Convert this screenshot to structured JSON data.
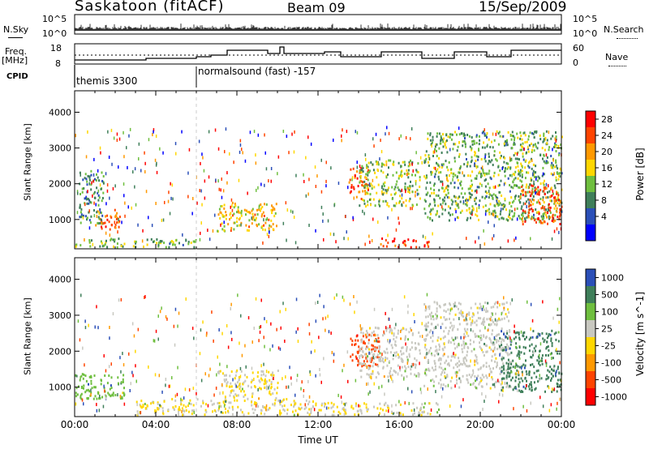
{
  "header": {
    "station": "Saskatoon (fitACF)",
    "beam": "Beam 09",
    "date": "15/Sep/2009"
  },
  "top_panels": {
    "nsky_label": "N.Sky",
    "nsky_ticks": [
      "10^5",
      "10^0"
    ],
    "nsearch_label": "N.Search",
    "nsearch_ticks": [
      "10^5",
      "10^0"
    ],
    "freq_label": "Freq.",
    "freq_unit": "[MHz]",
    "freq_ticks": [
      "18",
      "8"
    ],
    "nave_label": "Nave",
    "nave_ticks": [
      "60",
      "0"
    ],
    "cpid_label": "CPID",
    "cpid_segments": [
      {
        "label": "themis 3300",
        "start_h": 0.0,
        "end_h": 6.0
      },
      {
        "label": "normalsound (fast) -157",
        "start_h": 6.0,
        "end_h": 24.0
      }
    ]
  },
  "chart_data": [
    {
      "type": "heatmap",
      "title": "",
      "ylabel": "Slant Range [km]",
      "xlabel": "",
      "xlim": [
        0,
        24
      ],
      "ylim": [
        180,
        4600
      ],
      "yticks": [
        "1000",
        "2000",
        "3000",
        "4000"
      ],
      "colorbar": {
        "label": "Power [dB]",
        "ticks": [
          "28",
          "24",
          "20",
          "16",
          "12",
          "8",
          "4"
        ],
        "range": [
          0,
          30
        ]
      },
      "colors": [
        "#0000ff",
        "#2b4fb8",
        "#3f7f5a",
        "#6fbf3f",
        "#ffd700",
        "#ff9900",
        "#ff4400",
        "#ff0000"
      ],
      "regions": [
        {
          "x": [
            1.0,
            2.2
          ],
          "y": [
            700,
            1300
          ],
          "value": 24
        },
        {
          "x": [
            0.0,
            6.0
          ],
          "y": [
            250,
            500
          ],
          "value": 12
        },
        {
          "x": [
            0.2,
            1.4
          ],
          "y": [
            900,
            2400
          ],
          "value": 10
        },
        {
          "x": [
            7.0,
            10.0
          ],
          "y": [
            700,
            1500
          ],
          "value": 18
        },
        {
          "x": [
            13.5,
            14.5
          ],
          "y": [
            1600,
            2500
          ],
          "value": 24
        },
        {
          "x": [
            14.0,
            17.0
          ],
          "y": [
            1400,
            2700
          ],
          "value": 14
        },
        {
          "x": [
            15.0,
            17.5
          ],
          "y": [
            250,
            500
          ],
          "value": 26
        },
        {
          "x": [
            17.2,
            24.0
          ],
          "y": [
            1000,
            3500
          ],
          "value": 12
        },
        {
          "x": [
            22.0,
            24.0
          ],
          "y": [
            900,
            2000
          ],
          "value": 24
        }
      ]
    },
    {
      "type": "heatmap",
      "title": "",
      "ylabel": "Slant Range [km]",
      "xlabel": "Time UT",
      "xlim": [
        0,
        24
      ],
      "ylim": [
        180,
        4600
      ],
      "xticks": [
        "00:00",
        "04:00",
        "08:00",
        "12:00",
        "16:00",
        "20:00",
        "00:00"
      ],
      "yticks": [
        "1000",
        "2000",
        "3000",
        "4000"
      ],
      "colorbar": {
        "label": "Velocity [m s^-1]",
        "ticks": [
          "1000",
          "500",
          "100",
          "25",
          "-25",
          "-100",
          "-500",
          "-1000"
        ]
      },
      "colors": [
        "#ff0000",
        "#ff4400",
        "#ff9900",
        "#ffd700",
        "#c8c8c0",
        "#6fbf3f",
        "#3f7f5a",
        "#2b4fb8"
      ],
      "regions": [
        {
          "x": [
            0.0,
            2.5
          ],
          "y": [
            700,
            1400
          ],
          "value": 100
        },
        {
          "x": [
            3.0,
            12.0
          ],
          "y": [
            250,
            700
          ],
          "value": -25
        },
        {
          "x": [
            7.0,
            10.0
          ],
          "y": [
            700,
            1500
          ],
          "value": -25
        },
        {
          "x": [
            13.5,
            15.0
          ],
          "y": [
            1600,
            2500
          ],
          "value": -500
        },
        {
          "x": [
            14.0,
            17.0
          ],
          "y": [
            1300,
            2700
          ],
          "value": 0
        },
        {
          "x": [
            17.2,
            21.5
          ],
          "y": [
            1000,
            3400
          ],
          "value": 0
        },
        {
          "x": [
            21.0,
            24.0
          ],
          "y": [
            900,
            2600
          ],
          "value": 500
        },
        {
          "x": [
            12.0,
            18.0
          ],
          "y": [
            250,
            600
          ],
          "value": -25
        }
      ]
    }
  ]
}
